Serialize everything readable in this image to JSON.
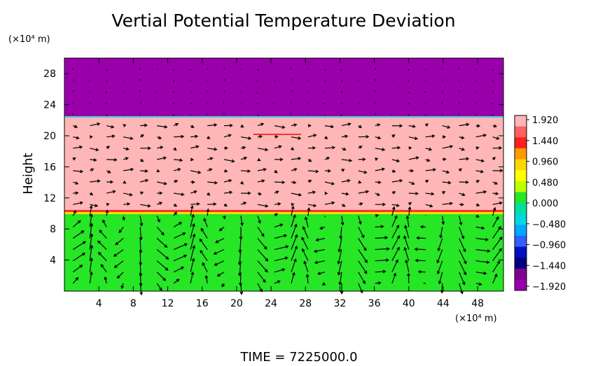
{
  "chart_data": {
    "type": "heatmap",
    "title": "Vertial Potential Temperature Deviation",
    "xlabel": "",
    "ylabel": "Height",
    "x_unit": "(×10⁴ m)",
    "y_unit": "(×10⁴ m)",
    "xlim": [
      0,
      51
    ],
    "ylim": [
      0,
      30
    ],
    "x_ticks": [
      4,
      8,
      12,
      16,
      20,
      24,
      28,
      32,
      36,
      40,
      44,
      48
    ],
    "y_ticks": [
      4,
      8,
      12,
      16,
      20,
      24,
      28
    ],
    "layers": [
      {
        "name": "lower",
        "y_range": [
          0,
          10
        ],
        "value": 0.0,
        "color": "#26e626"
      },
      {
        "name": "middle",
        "y_range": [
          10,
          22.4
        ],
        "value": 1.92,
        "color": "#ffb6b6"
      },
      {
        "name": "upper",
        "y_range": [
          22.4,
          30
        ],
        "value": -1.92,
        "color": "#9900aa"
      }
    ],
    "colorbar": {
      "labels": [
        "1.920",
        "1.440",
        "0.960",
        "0.480",
        "0.000",
        "−0.480",
        "−0.960",
        "−1.440",
        "−1.920"
      ],
      "colors": [
        "#ffb6b6",
        "#ff6060",
        "#ff2020",
        "#ff9900",
        "#ffd700",
        "#ffff00",
        "#bfff00",
        "#26e626",
        "#00e0a0",
        "#00d8e0",
        "#00a8ff",
        "#3060ff",
        "#0010c0",
        "#000080",
        "#800090",
        "#9900aa"
      ]
    },
    "footer": "TIME  =  7225000.0"
  }
}
